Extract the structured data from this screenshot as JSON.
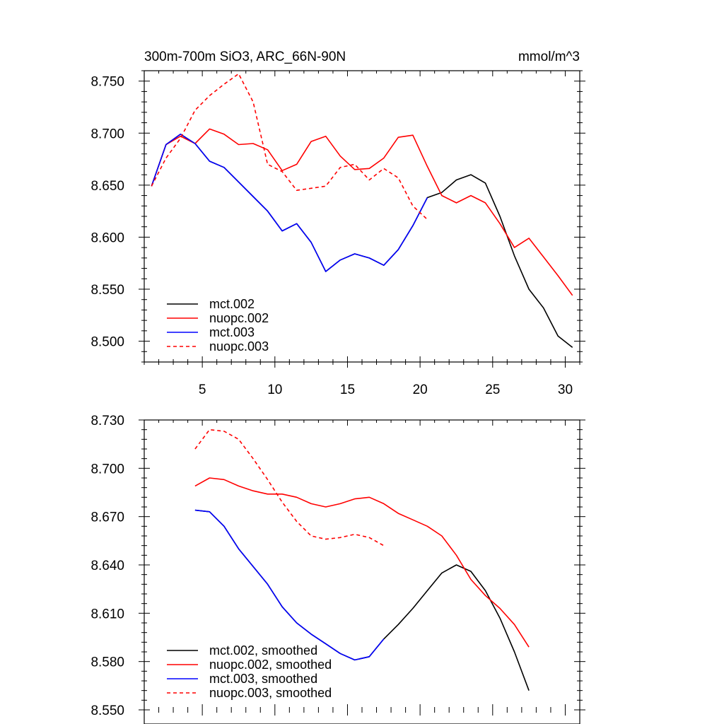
{
  "chart_data": [
    {
      "type": "line",
      "title": "300m-700m SiO3, ARC_66N-90N",
      "units": "mmol/m^3",
      "xlim": [
        1,
        31
      ],
      "ylim": [
        8.48,
        8.76
      ],
      "xticks": [
        5,
        10,
        15,
        20,
        25,
        30
      ],
      "yticks": [
        8.75,
        8.7,
        8.65,
        8.6,
        8.55,
        8.5
      ],
      "ytick_labels": [
        "8.750",
        "8.700",
        "8.650",
        "8.600",
        "8.550",
        "8.500"
      ],
      "xtick_labels": [
        "5",
        "10",
        "15",
        "20",
        "25",
        "30"
      ],
      "legend_position": "bottom-left",
      "series": [
        {
          "name": "mct.002",
          "color": "#000000",
          "dash": false,
          "x": [
            1.5,
            2.5,
            3.5,
            4.5,
            5.5,
            6.5,
            7.5,
            8.5,
            9.5,
            10.5,
            11.5,
            12.5,
            13.5,
            14.5,
            15.5,
            16.5,
            17.5,
            18.5,
            19.5,
            20.5,
            21.5,
            22.5,
            23.5,
            24.5,
            25.5,
            26.5,
            27.5,
            28.5,
            29.5,
            30.5
          ],
          "y": [
            8.649,
            8.689,
            8.699,
            8.69,
            8.673,
            8.667,
            8.653,
            8.639,
            8.625,
            8.606,
            8.613,
            8.595,
            8.567,
            8.578,
            8.584,
            8.58,
            8.573,
            8.588,
            8.611,
            8.638,
            8.643,
            8.655,
            8.66,
            8.652,
            8.62,
            8.582,
            8.55,
            8.532,
            8.505,
            8.494
          ]
        },
        {
          "name": "nuopc.002",
          "color": "#ff0000",
          "dash": false,
          "x": [
            1.5,
            2.5,
            3.5,
            4.5,
            5.5,
            6.5,
            7.5,
            8.5,
            9.5,
            10.5,
            11.5,
            12.5,
            13.5,
            14.5,
            15.5,
            16.5,
            17.5,
            18.5,
            19.5,
            20.5,
            21.5,
            22.5,
            23.5,
            24.5,
            25.5,
            26.5,
            27.5,
            28.5,
            29.5,
            30.5
          ],
          "y": [
            8.649,
            8.689,
            8.697,
            8.69,
            8.704,
            8.699,
            8.689,
            8.69,
            8.684,
            8.664,
            8.67,
            8.692,
            8.697,
            8.678,
            8.665,
            8.666,
            8.676,
            8.696,
            8.698,
            8.668,
            8.64,
            8.633,
            8.64,
            8.633,
            8.613,
            8.59,
            8.599,
            8.581,
            8.563,
            8.544
          ]
        },
        {
          "name": "mct.003",
          "color": "#0000ff",
          "dash": false,
          "x": [
            1.5,
            2.5,
            3.5,
            4.5,
            5.5,
            6.5,
            7.5,
            8.5,
            9.5,
            10.5,
            11.5,
            12.5,
            13.5,
            14.5,
            15.5,
            16.5,
            17.5,
            18.5,
            19.5,
            20.5
          ],
          "y": [
            8.649,
            8.689,
            8.699,
            8.69,
            8.673,
            8.667,
            8.653,
            8.639,
            8.625,
            8.606,
            8.613,
            8.595,
            8.567,
            8.578,
            8.584,
            8.58,
            8.573,
            8.588,
            8.611,
            8.638
          ]
        },
        {
          "name": "nuopc.003",
          "color": "#ff0000",
          "dash": true,
          "x": [
            1.5,
            2.5,
            3.5,
            4.5,
            5.5,
            6.5,
            7.5,
            8.5,
            9.5,
            10.5,
            11.5,
            12.5,
            13.5,
            14.5,
            15.5,
            16.5,
            17.5,
            18.5,
            19.5,
            20.5
          ],
          "y": [
            8.649,
            8.676,
            8.695,
            8.722,
            8.736,
            8.747,
            8.757,
            8.73,
            8.67,
            8.663,
            8.645,
            8.647,
            8.649,
            8.667,
            8.67,
            8.655,
            8.666,
            8.657,
            8.63,
            8.617
          ]
        }
      ]
    },
    {
      "type": "line",
      "title": "",
      "xlim": [
        1,
        31
      ],
      "ylim": [
        8.55,
        8.73
      ],
      "xticks": [
        5,
        10,
        15,
        20,
        25,
        30
      ],
      "yticks": [
        8.73,
        8.7,
        8.67,
        8.64,
        8.61,
        8.58,
        8.55
      ],
      "ytick_labels": [
        "8.730",
        "8.700",
        "8.670",
        "8.640",
        "8.610",
        "8.580",
        "8.550"
      ],
      "legend_position": "bottom-left",
      "series": [
        {
          "name": "mct.002, smoothed",
          "color": "#000000",
          "dash": false,
          "x": [
            4.5,
            5.5,
            6.5,
            7.5,
            8.5,
            9.5,
            10.5,
            11.5,
            12.5,
            13.5,
            14.5,
            15.5,
            16.5,
            17.5,
            18.5,
            19.5,
            20.5,
            21.5,
            22.5,
            23.5,
            24.5,
            25.5,
            26.5,
            27.5
          ],
          "y": [
            8.674,
            8.673,
            8.664,
            8.65,
            8.639,
            8.628,
            8.614,
            8.604,
            8.597,
            8.591,
            8.585,
            8.581,
            8.583,
            8.594,
            8.603,
            8.613,
            8.624,
            8.635,
            8.64,
            8.636,
            8.624,
            8.607,
            8.586,
            8.562
          ]
        },
        {
          "name": "nuopc.002, smoothed",
          "color": "#ff0000",
          "dash": false,
          "x": [
            4.5,
            5.5,
            6.5,
            7.5,
            8.5,
            9.5,
            10.5,
            11.5,
            12.5,
            13.5,
            14.5,
            15.5,
            16.5,
            17.5,
            18.5,
            19.5,
            20.5,
            21.5,
            22.5,
            23.5,
            24.5,
            25.5,
            26.5,
            27.5
          ],
          "y": [
            8.689,
            8.694,
            8.693,
            8.689,
            8.686,
            8.684,
            8.684,
            8.682,
            8.678,
            8.676,
            8.678,
            8.681,
            8.682,
            8.678,
            8.672,
            8.668,
            8.664,
            8.658,
            8.646,
            8.631,
            8.621,
            8.613,
            8.603,
            8.589
          ]
        },
        {
          "name": "mct.003, smoothed",
          "color": "#0000ff",
          "dash": false,
          "x": [
            4.5,
            5.5,
            6.5,
            7.5,
            8.5,
            9.5,
            10.5,
            11.5,
            12.5,
            13.5,
            14.5,
            15.5,
            16.5,
            17.5
          ],
          "y": [
            8.674,
            8.673,
            8.664,
            8.65,
            8.639,
            8.628,
            8.614,
            8.604,
            8.597,
            8.591,
            8.585,
            8.581,
            8.583,
            8.594
          ]
        },
        {
          "name": "nuopc.003, smoothed",
          "color": "#ff0000",
          "dash": true,
          "x": [
            4.5,
            5.5,
            6.5,
            7.5,
            8.5,
            9.5,
            10.5,
            11.5,
            12.5,
            13.5,
            14.5,
            15.5,
            16.5,
            17.5
          ],
          "y": [
            8.712,
            8.724,
            8.723,
            8.718,
            8.706,
            8.693,
            8.679,
            8.667,
            8.658,
            8.656,
            8.657,
            8.659,
            8.657,
            8.652
          ]
        }
      ]
    }
  ]
}
